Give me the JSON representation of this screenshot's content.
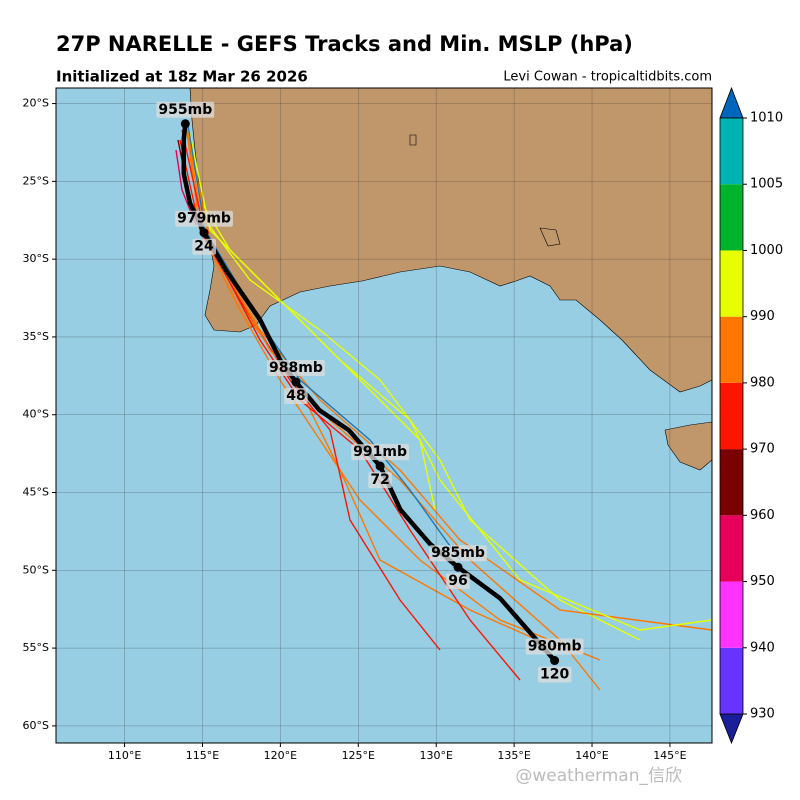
{
  "header": {
    "title": "27P NARELLE - GEFS Tracks and Min. MSLP (hPa)",
    "subtitle": "Initialized at 18z Mar 26 2026",
    "credit": "Levi Cowan - tropicaltidbits.com"
  },
  "map": {
    "xlim": [
      105.6,
      147.7
    ],
    "ylim": [
      -61.1,
      -19.0
    ],
    "xticks": [
      {
        "value": 110,
        "label": "110°E"
      },
      {
        "value": 115,
        "label": "115°E"
      },
      {
        "value": 120,
        "label": "120°E"
      },
      {
        "value": 125,
        "label": "125°E"
      },
      {
        "value": 130,
        "label": "130°E"
      },
      {
        "value": 135,
        "label": "135°E"
      },
      {
        "value": 140,
        "label": "140°E"
      },
      {
        "value": 145,
        "label": "145°E"
      }
    ],
    "yticks": [
      {
        "value": -20,
        "label": "20°S"
      },
      {
        "value": -25,
        "label": "25°S"
      },
      {
        "value": -30,
        "label": "30°S"
      },
      {
        "value": -35,
        "label": "35°S"
      },
      {
        "value": -40,
        "label": "40°S"
      },
      {
        "value": -45,
        "label": "45°S"
      },
      {
        "value": -50,
        "label": "50°S"
      },
      {
        "value": -55,
        "label": "55°S"
      },
      {
        "value": -60,
        "label": "60°S"
      }
    ],
    "grid": true,
    "mean_track": {
      "lon": [
        113.9,
        113.8,
        113.8,
        114.2,
        115.1,
        116.5,
        118.7,
        120.0,
        121.0,
        122.5,
        124.4,
        126.4,
        127.7,
        129.6,
        131.4,
        134.1,
        137.6
      ],
      "lat": [
        -21.3,
        -22.3,
        -24.5,
        -26.4,
        -28.3,
        -30.7,
        -33.9,
        -36.5,
        -37.9,
        -39.7,
        -41.0,
        -43.3,
        -46.1,
        -48.3,
        -49.8,
        -51.8,
        -55.8
      ]
    },
    "labels": [
      {
        "pressure": "955mb",
        "lon": 113.9,
        "lat": -21.3
      },
      {
        "pressure": "979mb",
        "hour": "24",
        "lon": 115.1,
        "lat": -28.3
      },
      {
        "pressure": "988mb",
        "hour": "48",
        "lon": 121.0,
        "lat": -37.9
      },
      {
        "pressure": "991mb",
        "hour": "72",
        "lon": 126.4,
        "lat": -43.3
      },
      {
        "pressure": "985mb",
        "hour": "96",
        "lon": 131.4,
        "lat": -49.8
      },
      {
        "pressure": "980mb",
        "hour": "120",
        "lon": 137.6,
        "lat": -55.8
      }
    ]
  },
  "colorbar": {
    "ticks": [
      930,
      940,
      950,
      960,
      970,
      980,
      990,
      1000,
      1005,
      1010
    ],
    "colors": [
      "#1a1f99",
      "#6633ff",
      "#ff33ff",
      "#e6005a",
      "#7a0000",
      "#ff1400",
      "#ff7700",
      "#e6ff00",
      "#00b32d",
      "#00b3b3",
      "#0066bb"
    ]
  },
  "watermark": "@weatherman_信欣"
}
